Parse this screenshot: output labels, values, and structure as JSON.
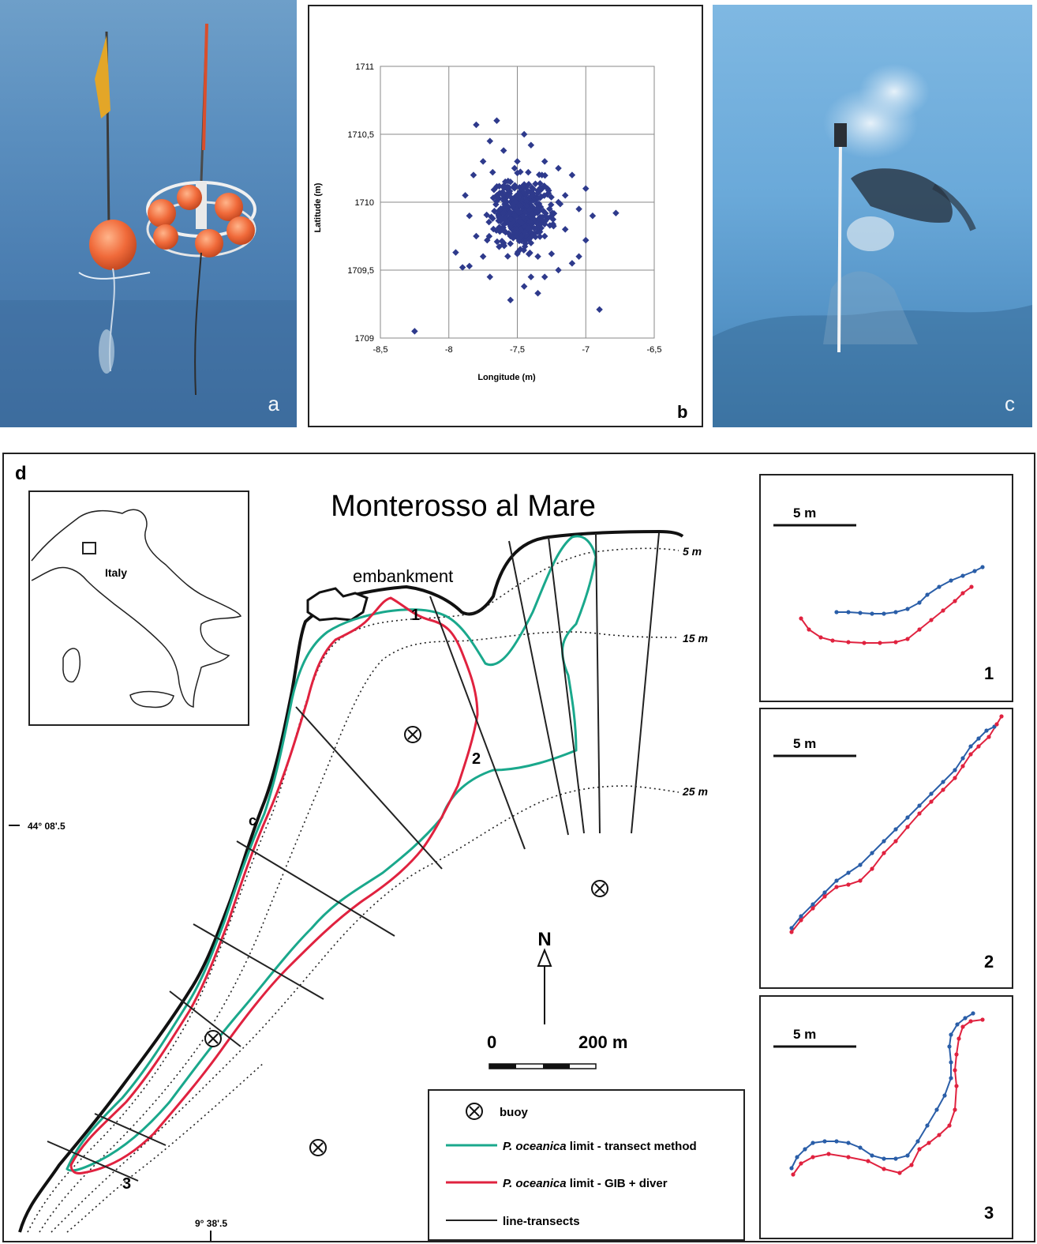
{
  "panels": {
    "a": {
      "label": "a"
    },
    "b": {
      "label": "b"
    },
    "c": {
      "label": "c"
    },
    "d": {
      "label": "d",
      "title": "Monterosso al Mare",
      "inset_country": "Italy",
      "coastal_label": "embankment",
      "depth_labels": [
        "5 m",
        "15 m",
        "25 m"
      ],
      "lat_label": "44° 08'.5",
      "lon_label": "9° 38'.5",
      "transect_numbers": [
        "1",
        "2",
        "3"
      ],
      "photo_site_label": "c",
      "north_label": "N",
      "scale_start": "0",
      "scale_end": "200 m",
      "legend": {
        "buoy": "buoy",
        "transect_prefix": "P. oceanica",
        "transect_suffix": " limit - transect method",
        "gib_prefix": "P. oceanica",
        "gib_suffix": " limit - GIB + diver",
        "lines": "line-transects"
      },
      "colors": {
        "transect_method": "#1aa88c",
        "gib_diver": "#e0223f",
        "line_transects": "#222222",
        "blue_track": "#2a5ea8"
      },
      "detail_panels": [
        {
          "scale": "5 m",
          "number": "1"
        },
        {
          "scale": "5 m",
          "number": "2"
        },
        {
          "scale": "5 m",
          "number": "3"
        }
      ]
    }
  },
  "chart_data": {
    "type": "scatter",
    "title": "",
    "xlabel": "Longitude (m)",
    "ylabel": "Latitude (m)",
    "xlim": [
      -8.5,
      -6.5
    ],
    "ylim": [
      1709,
      1711
    ],
    "xticks": [
      -8.5,
      -8,
      -7.5,
      -7,
      -6.5
    ],
    "xtick_labels": [
      "-8,5",
      "-8",
      "-7,5",
      "-7",
      "-6,5"
    ],
    "yticks": [
      1709,
      1709.5,
      1710,
      1710.5,
      1711
    ],
    "ytick_labels": [
      "1709",
      "1709,5",
      "1710",
      "1710,5",
      "1711"
    ],
    "grid": true,
    "marker_color": "#2e3a8c",
    "points": [
      [
        -8.25,
        1709.05
      ],
      [
        -7.95,
        1709.63
      ],
      [
        -7.85,
        1709.53
      ],
      [
        -7.9,
        1709.52
      ],
      [
        -6.9,
        1709.21
      ],
      [
        -7.55,
        1709.28
      ],
      [
        -6.78,
        1709.92
      ],
      [
        -7.8,
        1710.57
      ],
      [
        -7.65,
        1710.6
      ],
      [
        -7.45,
        1710.5
      ],
      [
        -7.4,
        1710.42
      ],
      [
        -7.6,
        1710.38
      ],
      [
        -7.5,
        1710.3
      ],
      [
        -7.3,
        1710.3
      ],
      [
        -7.2,
        1710.25
      ],
      [
        -7.1,
        1710.2
      ],
      [
        -7.0,
        1710.1
      ],
      [
        -7.05,
        1709.95
      ],
      [
        -6.95,
        1709.9
      ],
      [
        -7.0,
        1709.72
      ],
      [
        -7.05,
        1709.6
      ],
      [
        -7.1,
        1709.55
      ],
      [
        -7.2,
        1709.5
      ],
      [
        -7.3,
        1709.45
      ],
      [
        -7.4,
        1709.45
      ],
      [
        -7.45,
        1709.38
      ],
      [
        -7.35,
        1709.33
      ],
      [
        -7.7,
        1709.45
      ],
      [
        -7.75,
        1709.6
      ],
      [
        -7.8,
        1709.75
      ],
      [
        -7.85,
        1709.9
      ],
      [
        -7.88,
        1710.05
      ],
      [
        -7.82,
        1710.2
      ],
      [
        -7.75,
        1710.3
      ],
      [
        -7.7,
        1710.45
      ],
      [
        -7.6,
        1710.12
      ],
      [
        -7.55,
        1710.15
      ],
      [
        -7.5,
        1710.05
      ],
      [
        -7.48,
        1709.98
      ],
      [
        -7.52,
        1709.9
      ],
      [
        -7.58,
        1709.85
      ],
      [
        -7.62,
        1709.95
      ],
      [
        -7.42,
        1710.08
      ],
      [
        -7.38,
        1709.95
      ],
      [
        -7.35,
        1709.85
      ],
      [
        -7.45,
        1709.8
      ],
      [
        -7.55,
        1709.75
      ],
      [
        -7.6,
        1709.7
      ],
      [
        -7.4,
        1709.7
      ],
      [
        -7.3,
        1709.75
      ],
      [
        -7.25,
        1709.9
      ],
      [
        -7.2,
        1710.0
      ],
      [
        -7.28,
        1710.1
      ],
      [
        -7.32,
        1710.2
      ],
      [
        -7.42,
        1710.22
      ],
      [
        -7.52,
        1710.25
      ],
      [
        -7.65,
        1710.05
      ],
      [
        -7.68,
        1709.88
      ],
      [
        -7.5,
        1709.62
      ],
      [
        -7.35,
        1709.6
      ],
      [
        -7.15,
        1709.8
      ],
      [
        -7.15,
        1710.05
      ],
      [
        -7.68,
        1710.22
      ],
      [
        -7.72,
        1709.72
      ],
      [
        -7.25,
        1709.62
      ],
      [
        -7.47,
        1709.92
      ]
    ]
  },
  "scene": {
    "photo_a": "orange buoys with flag poles floating on blue sea",
    "photo_c": "diver next to marker pole on seafloor"
  }
}
